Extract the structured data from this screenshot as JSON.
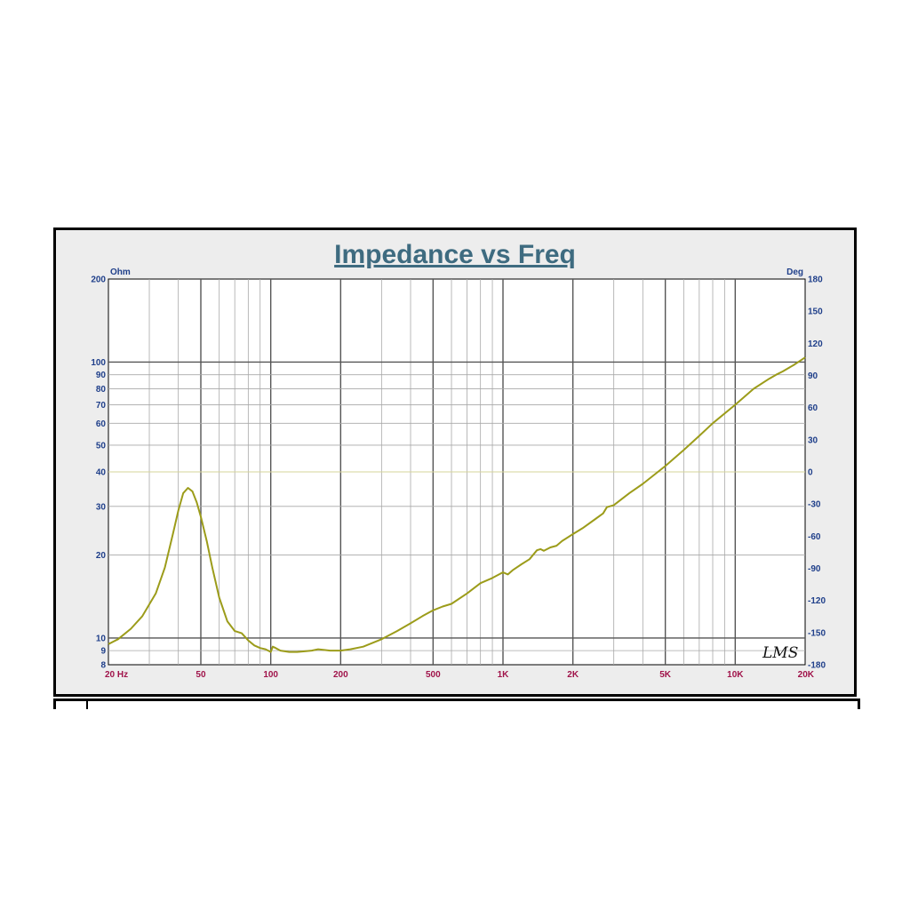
{
  "chart_data": {
    "type": "line",
    "title": "Impedance vs Freq",
    "y_left_label": "Ohm",
    "y_right_label": "Deg",
    "x_scale": "log",
    "xlim": [
      20,
      20000
    ],
    "y_left_scale": "log",
    "y_left_lim": [
      8,
      200
    ],
    "y_right_lim": [
      -180,
      180
    ],
    "x_ticks": [
      {
        "value": 20,
        "label": "20  Hz"
      },
      {
        "value": 50,
        "label": "50"
      },
      {
        "value": 100,
        "label": "100"
      },
      {
        "value": 200,
        "label": "200"
      },
      {
        "value": 500,
        "label": "500"
      },
      {
        "value": 1000,
        "label": "1K"
      },
      {
        "value": 2000,
        "label": "2K"
      },
      {
        "value": 5000,
        "label": "5K"
      },
      {
        "value": 10000,
        "label": "10K"
      },
      {
        "value": 20000,
        "label": "20K"
      }
    ],
    "y_left_ticks": [
      {
        "value": 200,
        "label": "200"
      },
      {
        "value": 100,
        "label": "100"
      },
      {
        "value": 90,
        "label": "90"
      },
      {
        "value": 80,
        "label": "80"
      },
      {
        "value": 70,
        "label": "70"
      },
      {
        "value": 60,
        "label": "60"
      },
      {
        "value": 50,
        "label": "50"
      },
      {
        "value": 40,
        "label": "40"
      },
      {
        "value": 30,
        "label": "30"
      },
      {
        "value": 20,
        "label": "20"
      },
      {
        "value": 10,
        "label": "10"
      },
      {
        "value": 9,
        "label": "9"
      },
      {
        "value": 8,
        "label": "8"
      }
    ],
    "y_right_ticks": [
      {
        "value": 180,
        "label": "180"
      },
      {
        "value": 150,
        "label": "150"
      },
      {
        "value": 120,
        "label": "120"
      },
      {
        "value": 90,
        "label": "90"
      },
      {
        "value": 60,
        "label": "60"
      },
      {
        "value": 30,
        "label": "30"
      },
      {
        "value": 0,
        "label": "0"
      },
      {
        "value": -30,
        "label": "-30"
      },
      {
        "value": -60,
        "label": "-60"
      },
      {
        "value": -90,
        "label": "-90"
      },
      {
        "value": -120,
        "label": "-120"
      },
      {
        "value": -150,
        "label": "-150"
      },
      {
        "value": -180,
        "label": "-180"
      }
    ],
    "grid": true,
    "series": [
      {
        "color": "#9c9c1a",
        "x": [
          20,
          22,
          25,
          28,
          32,
          35,
          38,
          40,
          42,
          44,
          46,
          48,
          50,
          53,
          56,
          60,
          65,
          70,
          75,
          80,
          85,
          90,
          95,
          100,
          102,
          105,
          110,
          120,
          130,
          140,
          150,
          160,
          170,
          180,
          200,
          220,
          250,
          300,
          350,
          400,
          450,
          500,
          550,
          600,
          700,
          800,
          900,
          1000,
          1050,
          1100,
          1200,
          1300,
          1400,
          1450,
          1500,
          1600,
          1700,
          1800,
          2000,
          2200,
          2500,
          2700,
          2800,
          3000,
          3500,
          4000,
          5000,
          6000,
          7000,
          8000,
          10000,
          12000,
          14000,
          15000,
          16000,
          18000,
          20000
        ],
        "y": [
          9.5,
          9.9,
          10.8,
          12.0,
          14.5,
          18.0,
          24.0,
          29.0,
          33.5,
          35.0,
          34.0,
          31.0,
          27.5,
          22.5,
          18.0,
          14.0,
          11.5,
          10.6,
          10.4,
          9.8,
          9.4,
          9.2,
          9.1,
          8.9,
          9.3,
          9.2,
          9.0,
          8.9,
          8.9,
          8.95,
          9.0,
          9.1,
          9.05,
          9.0,
          9.0,
          9.1,
          9.3,
          9.9,
          10.6,
          11.3,
          12.0,
          12.6,
          13.0,
          13.3,
          14.5,
          15.8,
          16.5,
          17.3,
          17.0,
          17.6,
          18.5,
          19.3,
          20.8,
          21.0,
          20.7,
          21.3,
          21.6,
          22.5,
          23.8,
          25.0,
          27.0,
          28.3,
          29.8,
          30.3,
          33.5,
          36.2,
          42.0,
          48.0,
          54.0,
          60.0,
          70.0,
          80.0,
          87.0,
          90.0,
          92.5,
          98.0,
          104.0
        ]
      }
    ],
    "annotation": "LMS"
  }
}
